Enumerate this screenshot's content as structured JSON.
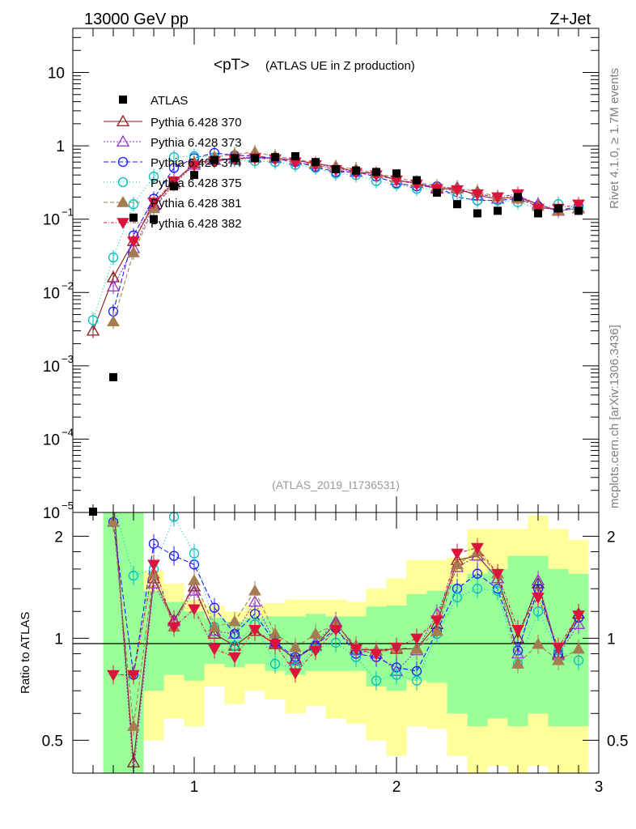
{
  "header": {
    "left": "13000 GeV pp",
    "right": "Z+Jet",
    "side_top": "Rivet 4.1.0, ≥ 1.7M events",
    "side_bottom": "mcplots.cern.ch [arXiv:1306.3436]"
  },
  "chart_data": {
    "type": "scatter",
    "title": "<pT>",
    "subtitle": "(ATLAS UE in Z production)",
    "reference_label": "(ATLAS_2019_I1736531)",
    "xlim": [
      0.4,
      3.0
    ],
    "ylim": [
      1e-05,
      40
    ],
    "yscale": "log",
    "ratio_ylim": [
      0.4,
      2.35
    ],
    "ratio_ylabel": "Ratio to ATLAS",
    "x_ticks": [
      "1",
      "2",
      "3"
    ],
    "y_ticks": [
      {
        "base": "10",
        "exp": "−5"
      },
      {
        "base": "10",
        "exp": "−4"
      },
      {
        "base": "10",
        "exp": "−3"
      },
      {
        "base": "10",
        "exp": "−2"
      },
      {
        "base": "10",
        "exp": "−1"
      },
      {
        "base": "1",
        "exp": ""
      },
      {
        "base": "10",
        "exp": ""
      }
    ],
    "ratio_ticks": [
      "0.5",
      "1",
      "2"
    ],
    "x": [
      0.5,
      0.6,
      0.7,
      0.8,
      0.9,
      1.0,
      1.1,
      1.2,
      1.3,
      1.4,
      1.5,
      1.6,
      1.7,
      1.8,
      1.9,
      2.0,
      2.1,
      2.2,
      2.3,
      2.4,
      2.5,
      2.6,
      2.7,
      2.8,
      2.9
    ],
    "data": {
      "name": "ATLAS",
      "values": [
        9.5e-06,
        0.0007,
        0.105,
        0.1,
        0.28,
        0.4,
        0.64,
        0.68,
        0.68,
        0.7,
        0.72,
        0.6,
        0.48,
        0.46,
        0.44,
        0.42,
        0.34,
        0.23,
        0.16,
        0.12,
        0.13,
        0.2,
        0.12,
        0.14,
        0.13
      ]
    },
    "series": [
      {
        "name": "Pythia 6.428 370",
        "color": "#8b1a1a",
        "marker": "triangle-open",
        "dash": "",
        "values": [
          0.003,
          0.016,
          0.05,
          0.16,
          0.32,
          0.58,
          0.64,
          0.67,
          0.69,
          0.68,
          0.64,
          0.57,
          0.52,
          0.44,
          0.42,
          0.34,
          0.31,
          0.26,
          0.26,
          0.21,
          0.19,
          0.2,
          0.16,
          0.13,
          0.14
        ],
        "ratio": [
          null,
          2.6,
          0.43,
          1.5,
          1.13,
          1.42,
          1.03,
          0.95,
          1.05,
          0.96,
          0.87,
          0.95,
          1.11,
          0.93,
          0.92,
          0.93,
          0.93,
          1.1,
          1.7,
          1.75,
          1.5,
          1.0,
          1.45,
          0.9,
          1.18
        ]
      },
      {
        "name": "Pythia 6.428 373",
        "color": "#9932cc",
        "marker": "triangle-open",
        "dash": "2,2",
        "values": [
          null,
          0.012,
          0.04,
          0.15,
          0.3,
          0.55,
          0.64,
          0.68,
          0.7,
          0.68,
          0.64,
          0.56,
          0.5,
          0.44,
          0.42,
          0.34,
          0.31,
          0.27,
          0.27,
          0.21,
          0.19,
          0.21,
          0.16,
          0.13,
          0.14
        ],
        "ratio": [
          null,
          2.5,
          0.4,
          1.45,
          1.12,
          1.38,
          1.05,
          1.03,
          1.28,
          0.97,
          0.86,
          0.97,
          1.12,
          0.92,
          0.9,
          0.8,
          0.92,
          1.18,
          1.62,
          1.75,
          1.5,
          0.9,
          1.48,
          0.89,
          1.1
        ]
      },
      {
        "name": "Pythia 6.428 374",
        "color": "#1a1aff",
        "marker": "circle-open",
        "dash": "6,3",
        "values": [
          null,
          0.0055,
          0.06,
          0.19,
          0.5,
          0.68,
          0.8,
          0.74,
          0.73,
          0.67,
          0.6,
          0.52,
          0.44,
          0.44,
          0.38,
          0.31,
          0.28,
          0.28,
          0.2,
          0.18,
          0.18,
          0.19,
          0.15,
          0.13,
          0.15
        ],
        "ratio": [
          null,
          2.2,
          0.78,
          1.9,
          1.75,
          1.65,
          1.23,
          1.03,
          1.18,
          0.97,
          0.88,
          0.95,
          1.07,
          0.9,
          0.88,
          0.82,
          0.8,
          1.05,
          1.4,
          1.55,
          1.4,
          0.92,
          1.4,
          0.9,
          1.15
        ]
      },
      {
        "name": "Pythia 6.428 375",
        "color": "#00bfbf",
        "marker": "circle-open",
        "dash": "1,3",
        "values": [
          0.0042,
          0.03,
          0.16,
          0.38,
          0.7,
          0.72,
          0.7,
          0.64,
          0.62,
          0.6,
          0.55,
          0.5,
          0.42,
          0.4,
          0.33,
          0.3,
          0.26,
          0.26,
          0.2,
          0.18,
          0.18,
          0.17,
          0.14,
          0.16,
          0.14
        ],
        "ratio": [
          null,
          2.5,
          1.53,
          1.6,
          2.28,
          1.78,
          1.08,
          0.95,
          1.1,
          0.84,
          0.82,
          0.93,
          0.97,
          0.88,
          0.75,
          0.78,
          0.75,
          1.03,
          1.32,
          1.4,
          1.38,
          0.84,
          1.2,
          0.92,
          0.86
        ]
      },
      {
        "name": "Pythia 6.428 381",
        "color": "#a67c52",
        "marker": "triangle-filled",
        "dash": "5,3",
        "values": [
          null,
          0.004,
          0.035,
          0.14,
          0.3,
          0.6,
          0.7,
          0.77,
          0.82,
          0.72,
          0.66,
          0.58,
          0.52,
          0.48,
          0.42,
          0.37,
          0.32,
          0.28,
          0.26,
          0.24,
          0.2,
          0.19,
          0.15,
          0.13,
          0.14
        ],
        "ratio": [
          null,
          2.2,
          0.55,
          1.55,
          1.08,
          1.48,
          1.08,
          1.12,
          1.38,
          1.03,
          0.94,
          1.03,
          1.1,
          0.95,
          0.92,
          0.94,
          0.93,
          1.05,
          1.65,
          1.8,
          1.55,
          0.84,
          0.96,
          0.86,
          0.93
        ]
      },
      {
        "name": "Pythia 6.428 382",
        "color": "#dc143c",
        "marker": "triangle-down-filled",
        "dash": "4,2,1,2",
        "values": [
          null,
          null,
          0.05,
          0.17,
          0.33,
          0.54,
          0.62,
          0.66,
          0.68,
          0.66,
          0.6,
          0.55,
          0.47,
          0.43,
          0.4,
          0.34,
          0.3,
          0.26,
          0.25,
          0.22,
          0.2,
          0.22,
          0.14,
          0.14,
          0.16
        ],
        "ratio": [
          null,
          0.78,
          0.78,
          1.65,
          1.08,
          1.22,
          0.93,
          0.88,
          1.06,
          0.96,
          0.79,
          0.92,
          1.06,
          0.93,
          0.9,
          0.94,
          1.0,
          1.13,
          1.78,
          1.85,
          1.55,
          1.06,
          1.32,
          0.94,
          1.17
        ]
      }
    ],
    "bands": {
      "x_edges": [
        0.55,
        0.65,
        0.75,
        0.85,
        0.95,
        1.05,
        1.15,
        1.25,
        1.35,
        1.45,
        1.55,
        1.65,
        1.75,
        1.85,
        1.95,
        2.05,
        2.15,
        2.25,
        2.35,
        2.45,
        2.55,
        2.65,
        2.75,
        2.85,
        2.95
      ],
      "yellow": [
        [
          0.3,
          2.35
        ],
        [
          0.3,
          2.35
        ],
        [
          0.5,
          1.58
        ],
        [
          0.58,
          1.45
        ],
        [
          0.55,
          1.3
        ],
        [
          0.72,
          1.25
        ],
        [
          0.64,
          1.2
        ],
        [
          0.7,
          1.25
        ],
        [
          0.66,
          1.27
        ],
        [
          0.6,
          1.3
        ],
        [
          0.63,
          1.3
        ],
        [
          0.58,
          1.3
        ],
        [
          0.56,
          1.28
        ],
        [
          0.5,
          1.4
        ],
        [
          0.45,
          1.5
        ],
        [
          0.55,
          1.7
        ],
        [
          0.54,
          1.7
        ],
        [
          0.45,
          1.73
        ],
        [
          0.4,
          2.1
        ],
        [
          0.42,
          2.1
        ],
        [
          0.4,
          2.1
        ],
        [
          0.42,
          2.3
        ],
        [
          0.4,
          2.1
        ],
        [
          0.4,
          1.95
        ]
      ],
      "green": [
        [
          0.3,
          2.35
        ],
        [
          0.3,
          2.35
        ],
        [
          0.7,
          1.38
        ],
        [
          0.78,
          1.28
        ],
        [
          0.75,
          1.2
        ],
        [
          0.84,
          1.15
        ],
        [
          0.82,
          1.12
        ],
        [
          0.84,
          1.15
        ],
        [
          0.8,
          1.16
        ],
        [
          0.78,
          1.16
        ],
        [
          0.8,
          1.18
        ],
        [
          0.8,
          1.16
        ],
        [
          0.8,
          1.16
        ],
        [
          0.72,
          1.24
        ],
        [
          0.7,
          1.25
        ],
        [
          0.75,
          1.35
        ],
        [
          0.74,
          1.38
        ],
        [
          0.6,
          1.45
        ],
        [
          0.55,
          1.55
        ],
        [
          0.58,
          1.6
        ],
        [
          0.55,
          1.75
        ],
        [
          0.6,
          1.75
        ],
        [
          0.55,
          1.6
        ],
        [
          0.55,
          1.55
        ]
      ]
    }
  }
}
